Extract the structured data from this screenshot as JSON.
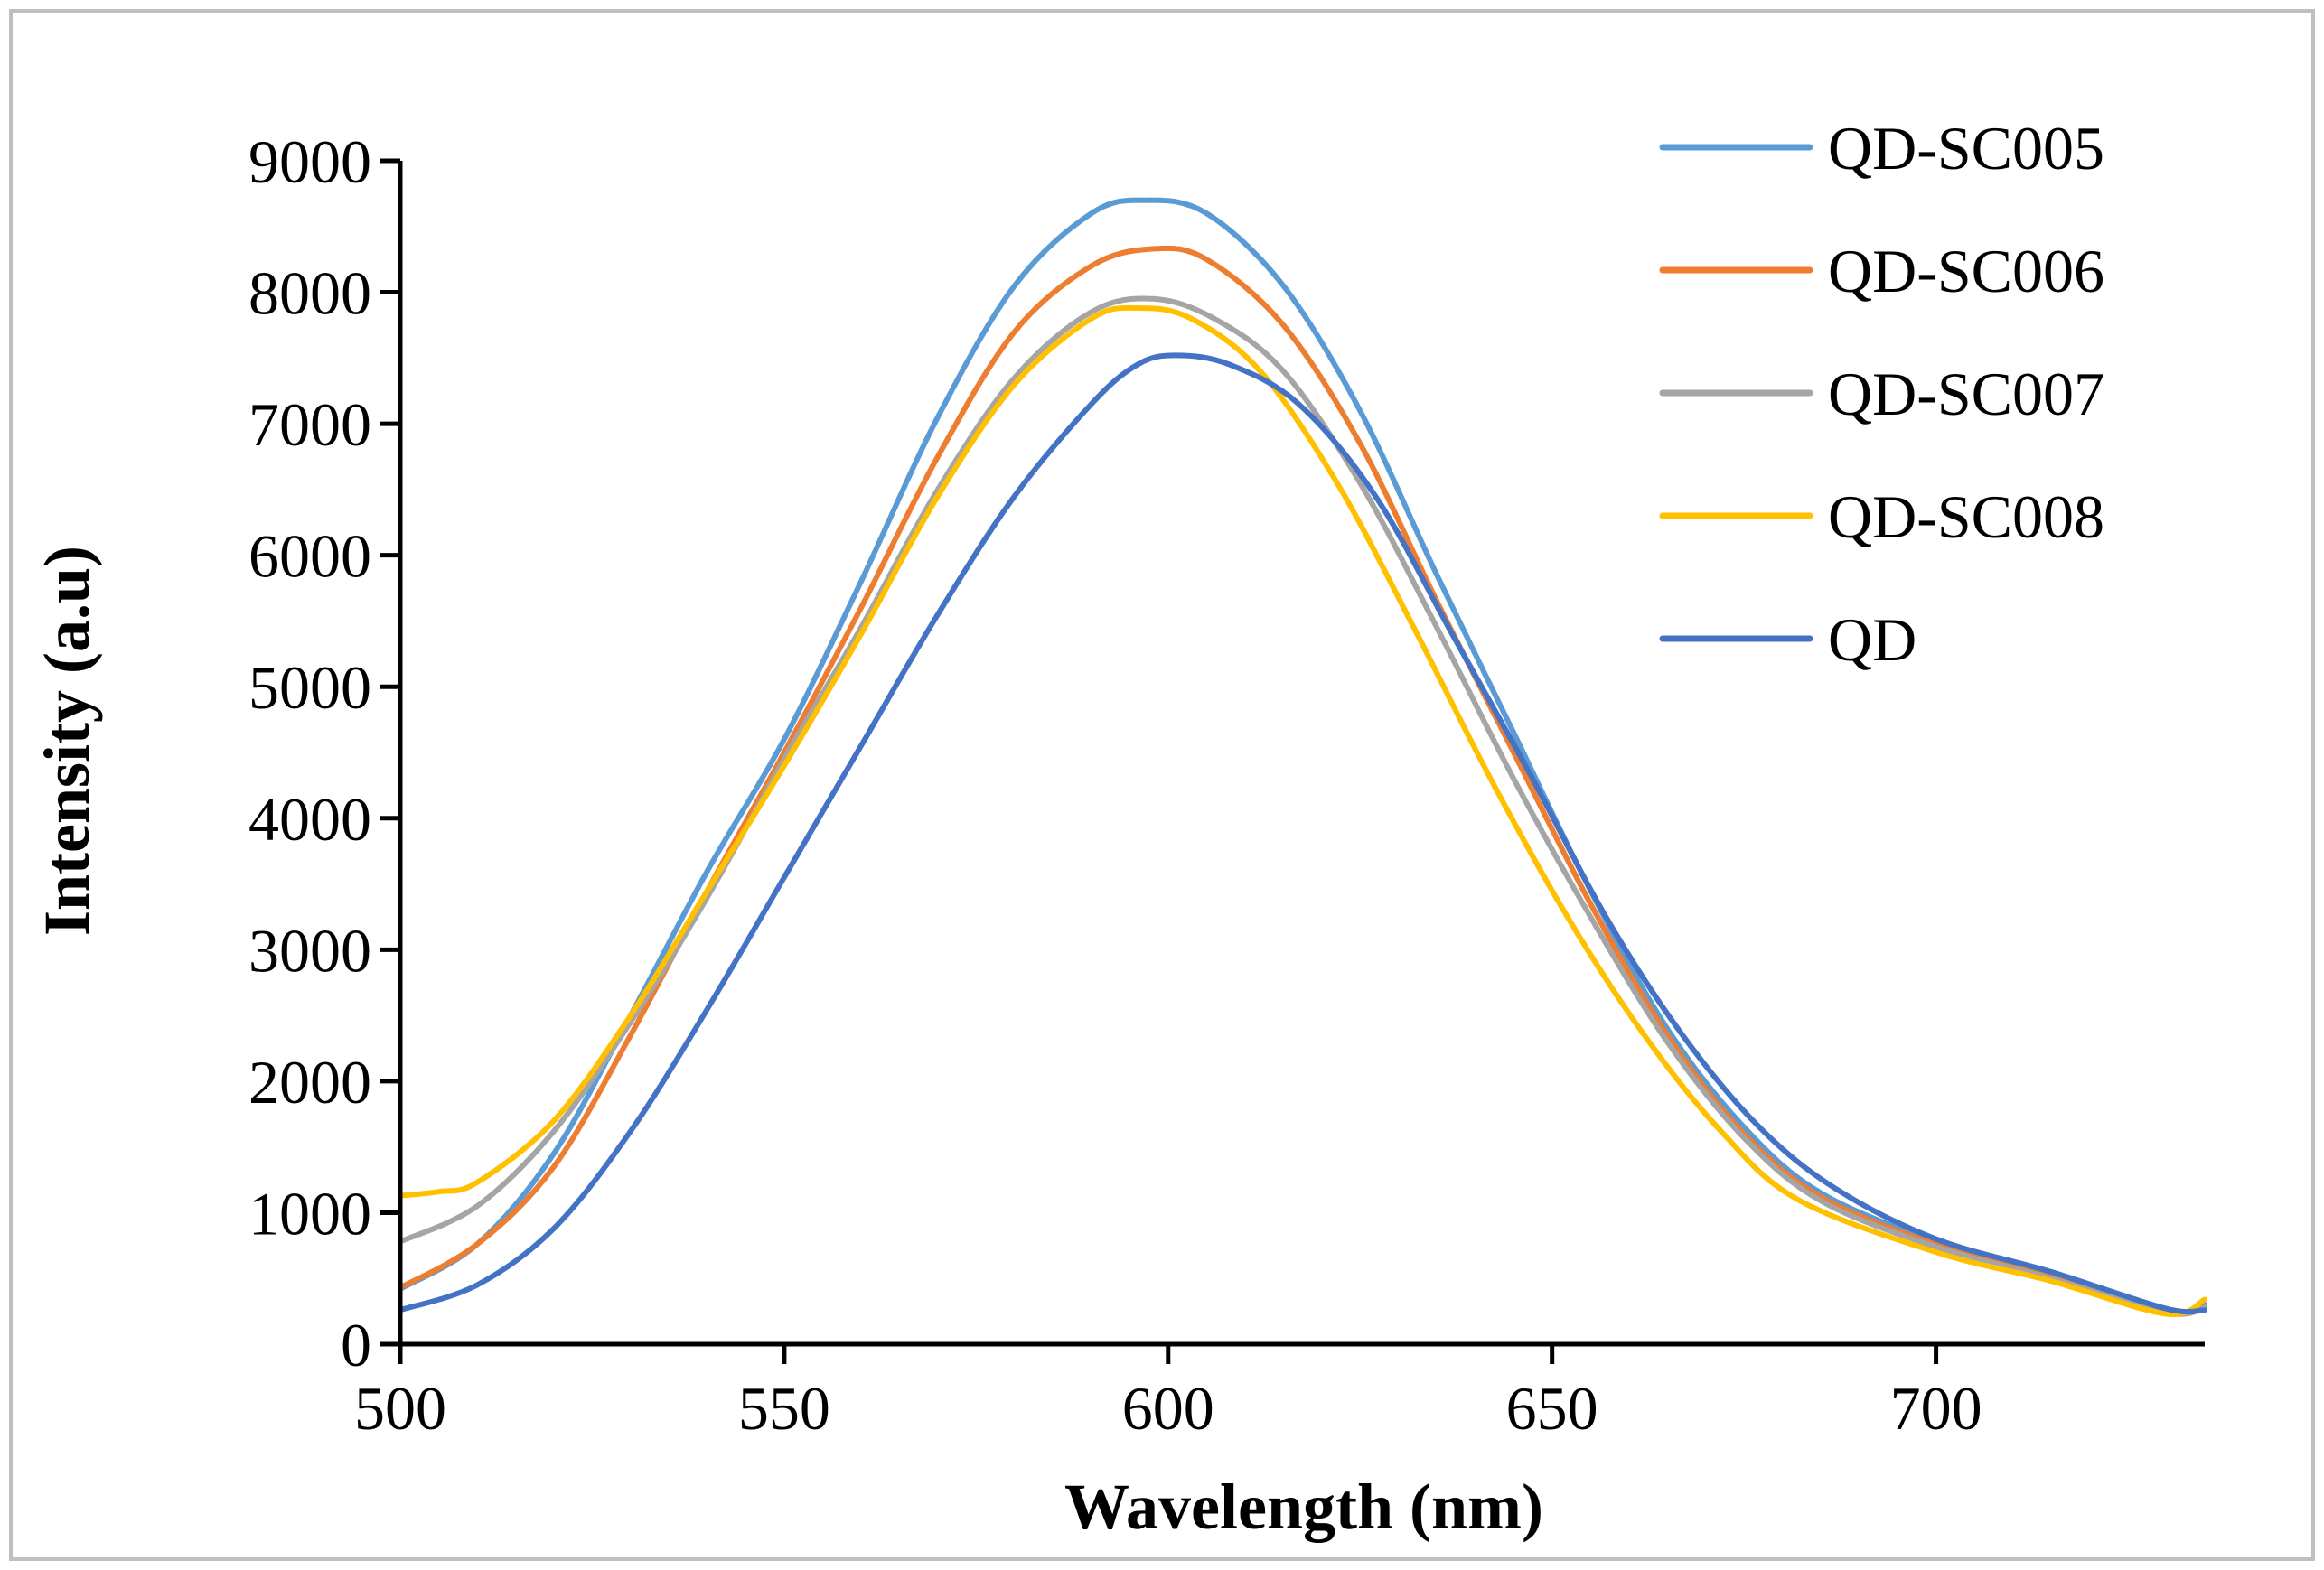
{
  "chart_data": {
    "type": "line",
    "title": "",
    "xlabel": "Wavelength (nm)",
    "ylabel": "Intensity (a.u)",
    "xlim": [
      500,
      735
    ],
    "ylim": [
      0,
      9000
    ],
    "xticks": [
      500,
      550,
      600,
      650,
      700
    ],
    "yticks": [
      0,
      1000,
      2000,
      3000,
      4000,
      5000,
      6000,
      7000,
      8000,
      9000
    ],
    "grid": false,
    "legend_position": "top-right",
    "series": [
      {
        "name": "QD-SC005",
        "color": "#5B9BD5",
        "points": [
          [
            500,
            420
          ],
          [
            510,
            760
          ],
          [
            520,
            1450
          ],
          [
            530,
            2500
          ],
          [
            540,
            3600
          ],
          [
            550,
            4600
          ],
          [
            560,
            5800
          ],
          [
            570,
            7050
          ],
          [
            580,
            8050
          ],
          [
            590,
            8600
          ],
          [
            597,
            8700
          ],
          [
            605,
            8600
          ],
          [
            615,
            8050
          ],
          [
            625,
            7100
          ],
          [
            635,
            5850
          ],
          [
            645,
            4650
          ],
          [
            655,
            3450
          ],
          [
            665,
            2400
          ],
          [
            675,
            1650
          ],
          [
            685,
            1150
          ],
          [
            700,
            780
          ],
          [
            715,
            530
          ],
          [
            730,
            250
          ],
          [
            735,
            300
          ]
        ]
      },
      {
        "name": "QD-SC006",
        "color": "#ED7D31",
        "points": [
          [
            500,
            430
          ],
          [
            510,
            760
          ],
          [
            520,
            1350
          ],
          [
            530,
            2350
          ],
          [
            540,
            3450
          ],
          [
            550,
            4500
          ],
          [
            560,
            5600
          ],
          [
            570,
            6750
          ],
          [
            580,
            7700
          ],
          [
            590,
            8200
          ],
          [
            598,
            8330
          ],
          [
            605,
            8250
          ],
          [
            615,
            7750
          ],
          [
            625,
            6850
          ],
          [
            635,
            5650
          ],
          [
            645,
            4500
          ],
          [
            655,
            3350
          ],
          [
            665,
            2350
          ],
          [
            675,
            1600
          ],
          [
            685,
            1120
          ],
          [
            700,
            760
          ],
          [
            715,
            520
          ],
          [
            730,
            240
          ],
          [
            735,
            280
          ]
        ]
      },
      {
        "name": "QD-SC007",
        "color": "#A5A5A5",
        "points": [
          [
            500,
            780
          ],
          [
            510,
            1050
          ],
          [
            520,
            1620
          ],
          [
            530,
            2450
          ],
          [
            540,
            3400
          ],
          [
            550,
            4450
          ],
          [
            560,
            5450
          ],
          [
            570,
            6500
          ],
          [
            580,
            7350
          ],
          [
            590,
            7850
          ],
          [
            598,
            7950
          ],
          [
            606,
            7800
          ],
          [
            615,
            7400
          ],
          [
            625,
            6550
          ],
          [
            635,
            5450
          ],
          [
            645,
            4300
          ],
          [
            655,
            3250
          ],
          [
            665,
            2300
          ],
          [
            675,
            1570
          ],
          [
            685,
            1090
          ],
          [
            700,
            740
          ],
          [
            715,
            500
          ],
          [
            730,
            240
          ],
          [
            735,
            280
          ]
        ]
      },
      {
        "name": "QD-SC008",
        "color": "#FFC000",
        "points": [
          [
            500,
            1130
          ],
          [
            505,
            1160
          ],
          [
            510,
            1230
          ],
          [
            520,
            1700
          ],
          [
            530,
            2500
          ],
          [
            540,
            3450
          ],
          [
            550,
            4400
          ],
          [
            560,
            5400
          ],
          [
            570,
            6450
          ],
          [
            580,
            7300
          ],
          [
            590,
            7800
          ],
          [
            596,
            7880
          ],
          [
            603,
            7800
          ],
          [
            612,
            7400
          ],
          [
            622,
            6550
          ],
          [
            632,
            5450
          ],
          [
            642,
            4300
          ],
          [
            652,
            3250
          ],
          [
            662,
            2350
          ],
          [
            672,
            1620
          ],
          [
            682,
            1100
          ],
          [
            700,
            700
          ],
          [
            715,
            480
          ],
          [
            730,
            230
          ],
          [
            735,
            340
          ]
        ]
      },
      {
        "name": "QD",
        "color": "#4472C4",
        "points": [
          [
            500,
            260
          ],
          [
            510,
            450
          ],
          [
            520,
            880
          ],
          [
            530,
            1620
          ],
          [
            540,
            2550
          ],
          [
            550,
            3550
          ],
          [
            560,
            4550
          ],
          [
            570,
            5550
          ],
          [
            580,
            6450
          ],
          [
            590,
            7150
          ],
          [
            596,
            7450
          ],
          [
            601,
            7520
          ],
          [
            608,
            7450
          ],
          [
            617,
            7150
          ],
          [
            627,
            6450
          ],
          [
            637,
            5400
          ],
          [
            647,
            4350
          ],
          [
            657,
            3250
          ],
          [
            667,
            2350
          ],
          [
            677,
            1650
          ],
          [
            687,
            1180
          ],
          [
            700,
            800
          ],
          [
            715,
            550
          ],
          [
            730,
            270
          ],
          [
            735,
            260
          ]
        ]
      }
    ]
  }
}
